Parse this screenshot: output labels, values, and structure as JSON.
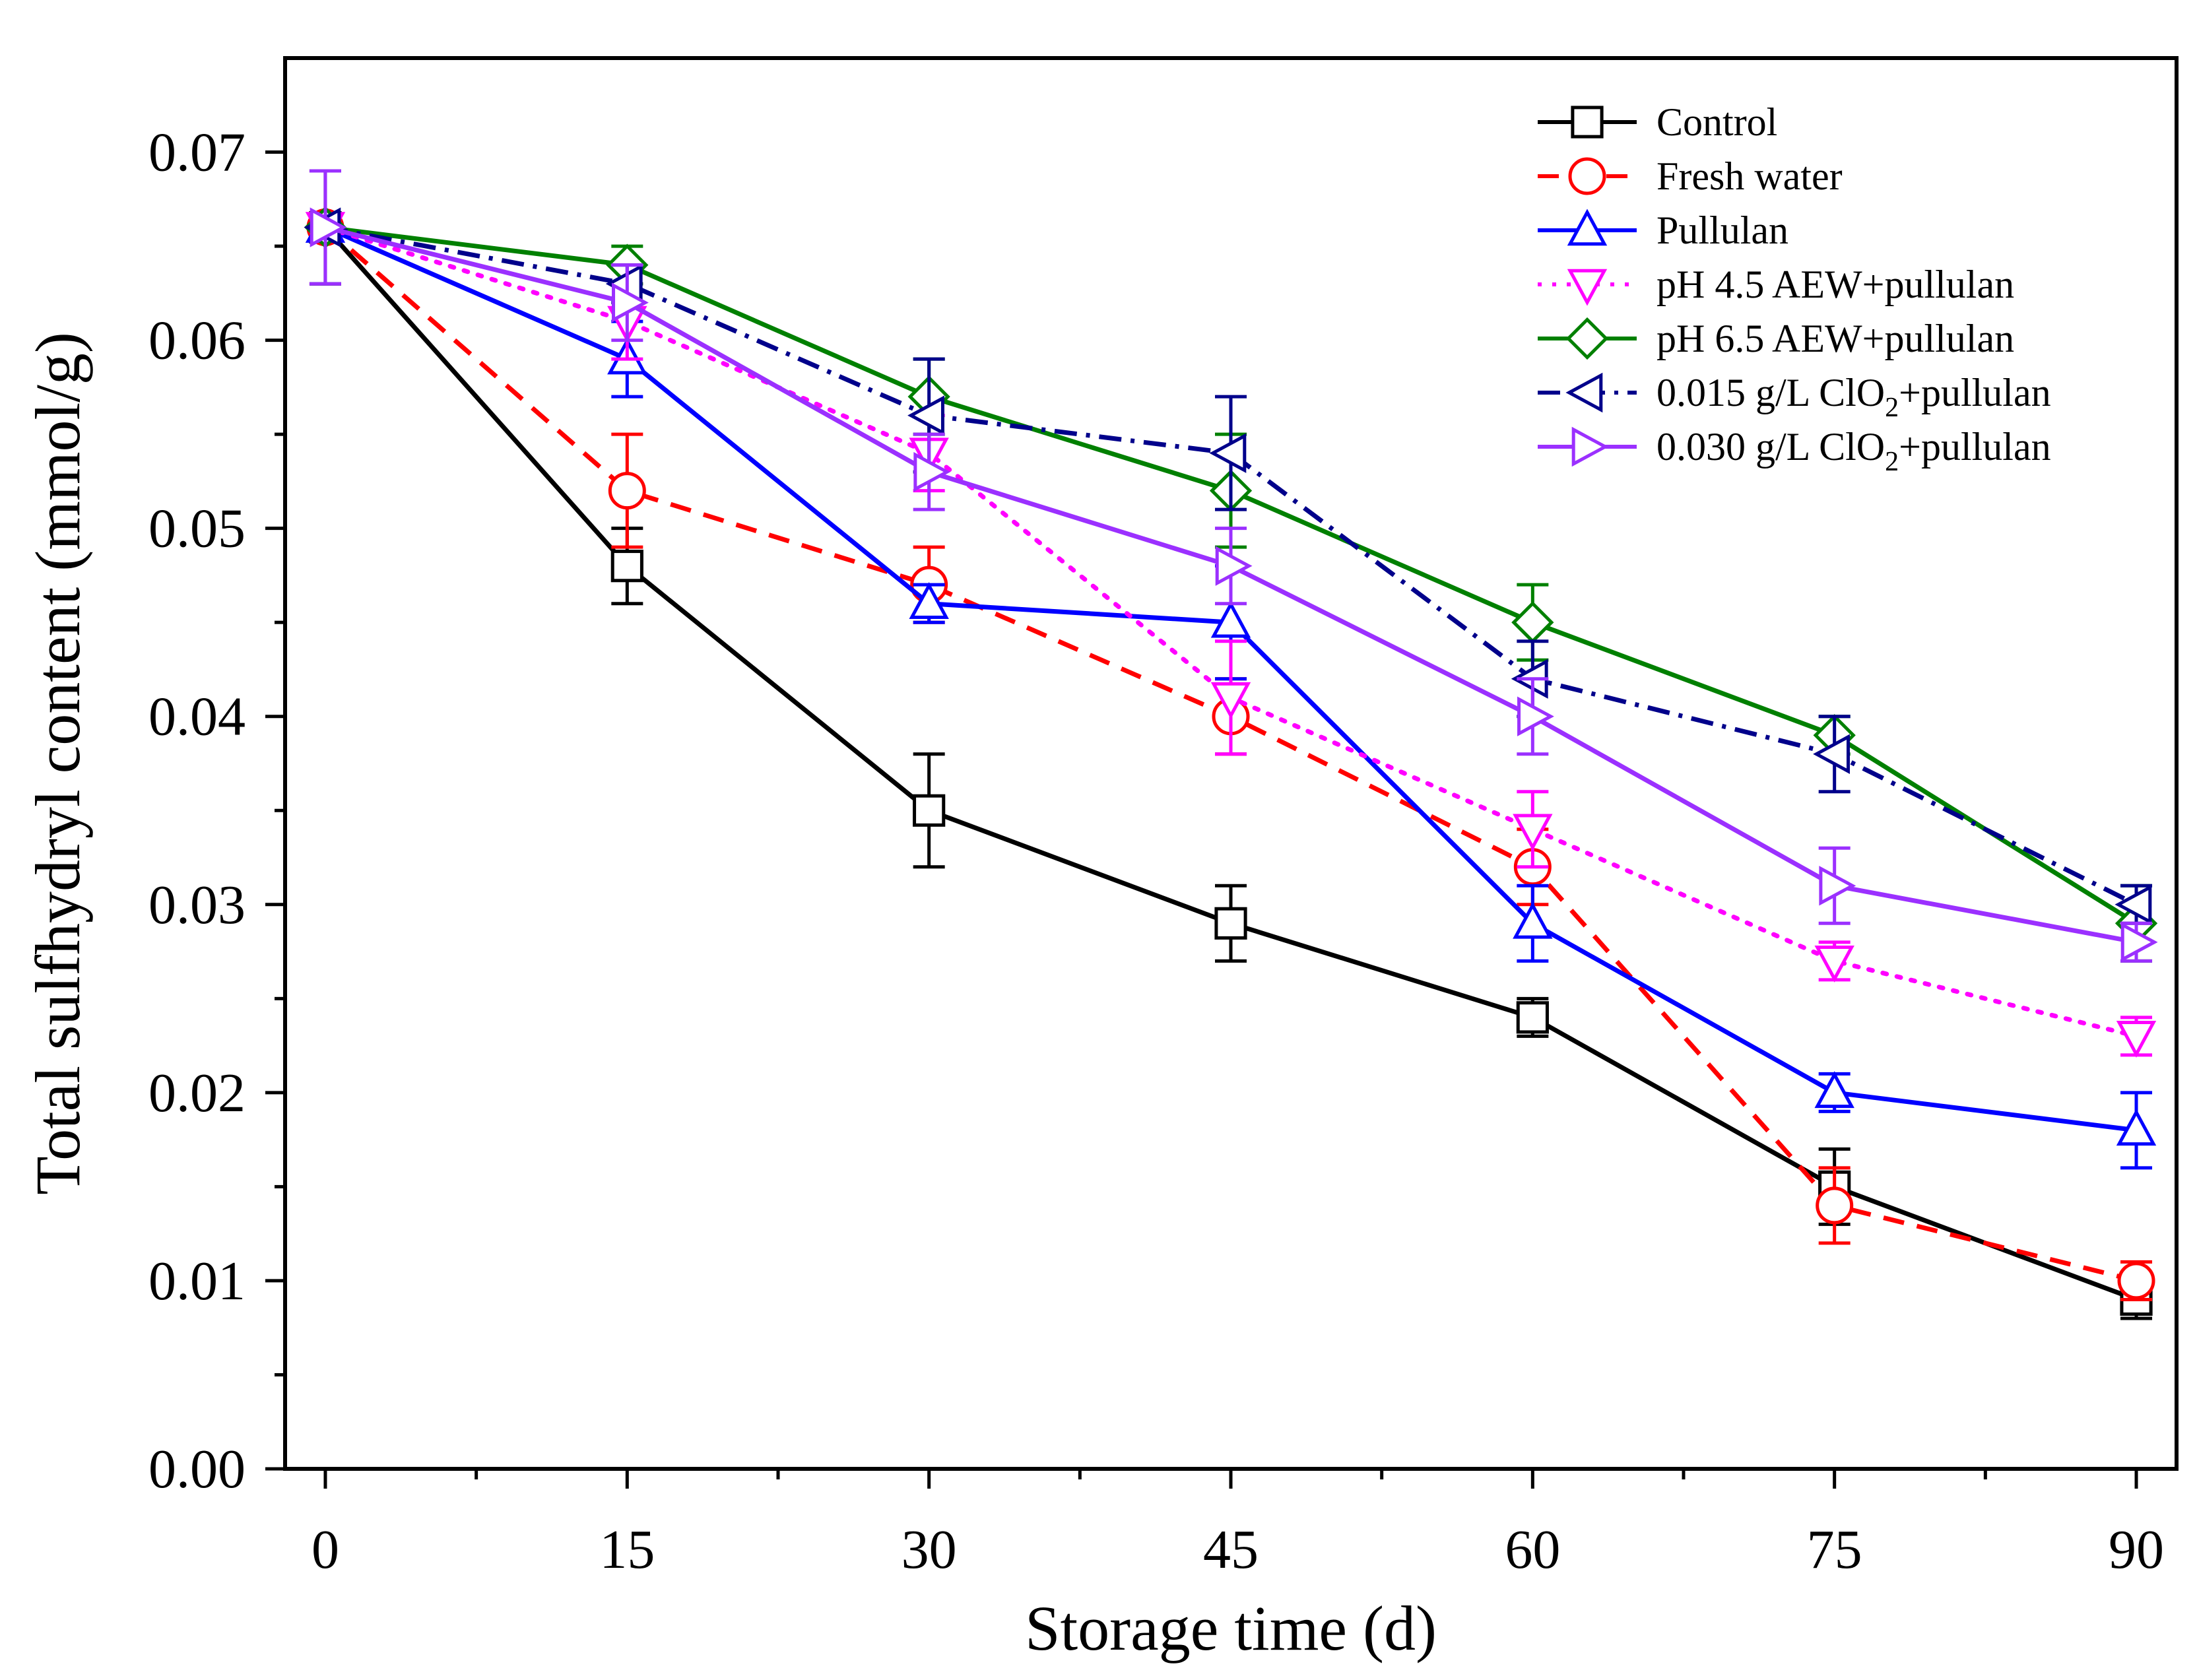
{
  "chart_data": {
    "type": "line",
    "title": "",
    "xlabel": "Storage time (d)",
    "ylabel": "Total sulfhydryl content (mmol/g)",
    "x": [
      0,
      15,
      30,
      45,
      60,
      75,
      90
    ],
    "xlim": [
      -2,
      92
    ],
    "ylim": [
      0,
      0.075
    ],
    "xticks": [
      "0",
      "15",
      "30",
      "45",
      "60",
      "75",
      "90"
    ],
    "yticks": [
      "0.00",
      "0.01",
      "0.02",
      "0.03",
      "0.04",
      "0.05",
      "0.06",
      "0.07"
    ],
    "legend_position": "top-right",
    "grid": false,
    "series": [
      {
        "name": "Control",
        "color": "#000000",
        "dash": "solid",
        "marker": "square",
        "values": [
          0.066,
          0.048,
          0.035,
          0.029,
          0.024,
          0.015,
          0.009
        ],
        "errors": [
          0.003,
          0.002,
          0.003,
          0.002,
          0.001,
          0.002,
          0.001
        ]
      },
      {
        "name": "Fresh water",
        "color": "#ff0000",
        "dash": "dashed",
        "marker": "circle",
        "values": [
          0.066,
          0.052,
          0.047,
          0.04,
          0.032,
          0.014,
          0.01
        ],
        "errors": [
          0.003,
          0.003,
          0.002,
          0.002,
          0.002,
          0.002,
          0.001
        ]
      },
      {
        "name": "Pullulan",
        "color": "#0000ff",
        "dash": "solid",
        "marker": "triangle-up",
        "values": [
          0.066,
          0.059,
          0.046,
          0.045,
          0.029,
          0.02,
          0.018
        ],
        "errors": [
          0.003,
          0.002,
          0.001,
          0.003,
          0.002,
          0.001,
          0.002
        ]
      },
      {
        "name": "pH 4.5 AEW+pullulan",
        "color": "#ff00ff",
        "dash": "dotted",
        "marker": "triangle-down",
        "values": [
          0.066,
          0.061,
          0.054,
          0.041,
          0.034,
          0.027,
          0.023
        ],
        "errors": [
          0.003,
          0.002,
          0.002,
          0.003,
          0.002,
          0.001,
          0.001
        ]
      },
      {
        "name": "pH 6.5 AEW+pullulan",
        "color": "#008000",
        "dash": "solid",
        "marker": "diamond",
        "values": [
          0.066,
          0.064,
          0.057,
          0.052,
          0.045,
          0.039,
          0.029
        ],
        "errors": [
          0.003,
          0.001,
          0.002,
          0.003,
          0.002,
          0.001,
          0.002
        ]
      },
      {
        "name": "0.015 g/L ClO2+pullulan",
        "color": "#00008b",
        "dash": "dashdot",
        "marker": "triangle-left",
        "values": [
          0.066,
          0.063,
          0.056,
          0.054,
          0.042,
          0.038,
          0.03
        ],
        "errors": [
          0.003,
          0.001,
          0.003,
          0.003,
          0.002,
          0.002,
          0.001
        ]
      },
      {
        "name": "0.030 g/L ClO2+pullulan",
        "color": "#9b30ff",
        "dash": "solid",
        "marker": "triangle-right",
        "values": [
          0.066,
          0.062,
          0.053,
          0.048,
          0.04,
          0.031,
          0.028
        ],
        "errors": [
          0.003,
          0.002,
          0.002,
          0.002,
          0.002,
          0.002,
          0.001
        ]
      }
    ]
  }
}
